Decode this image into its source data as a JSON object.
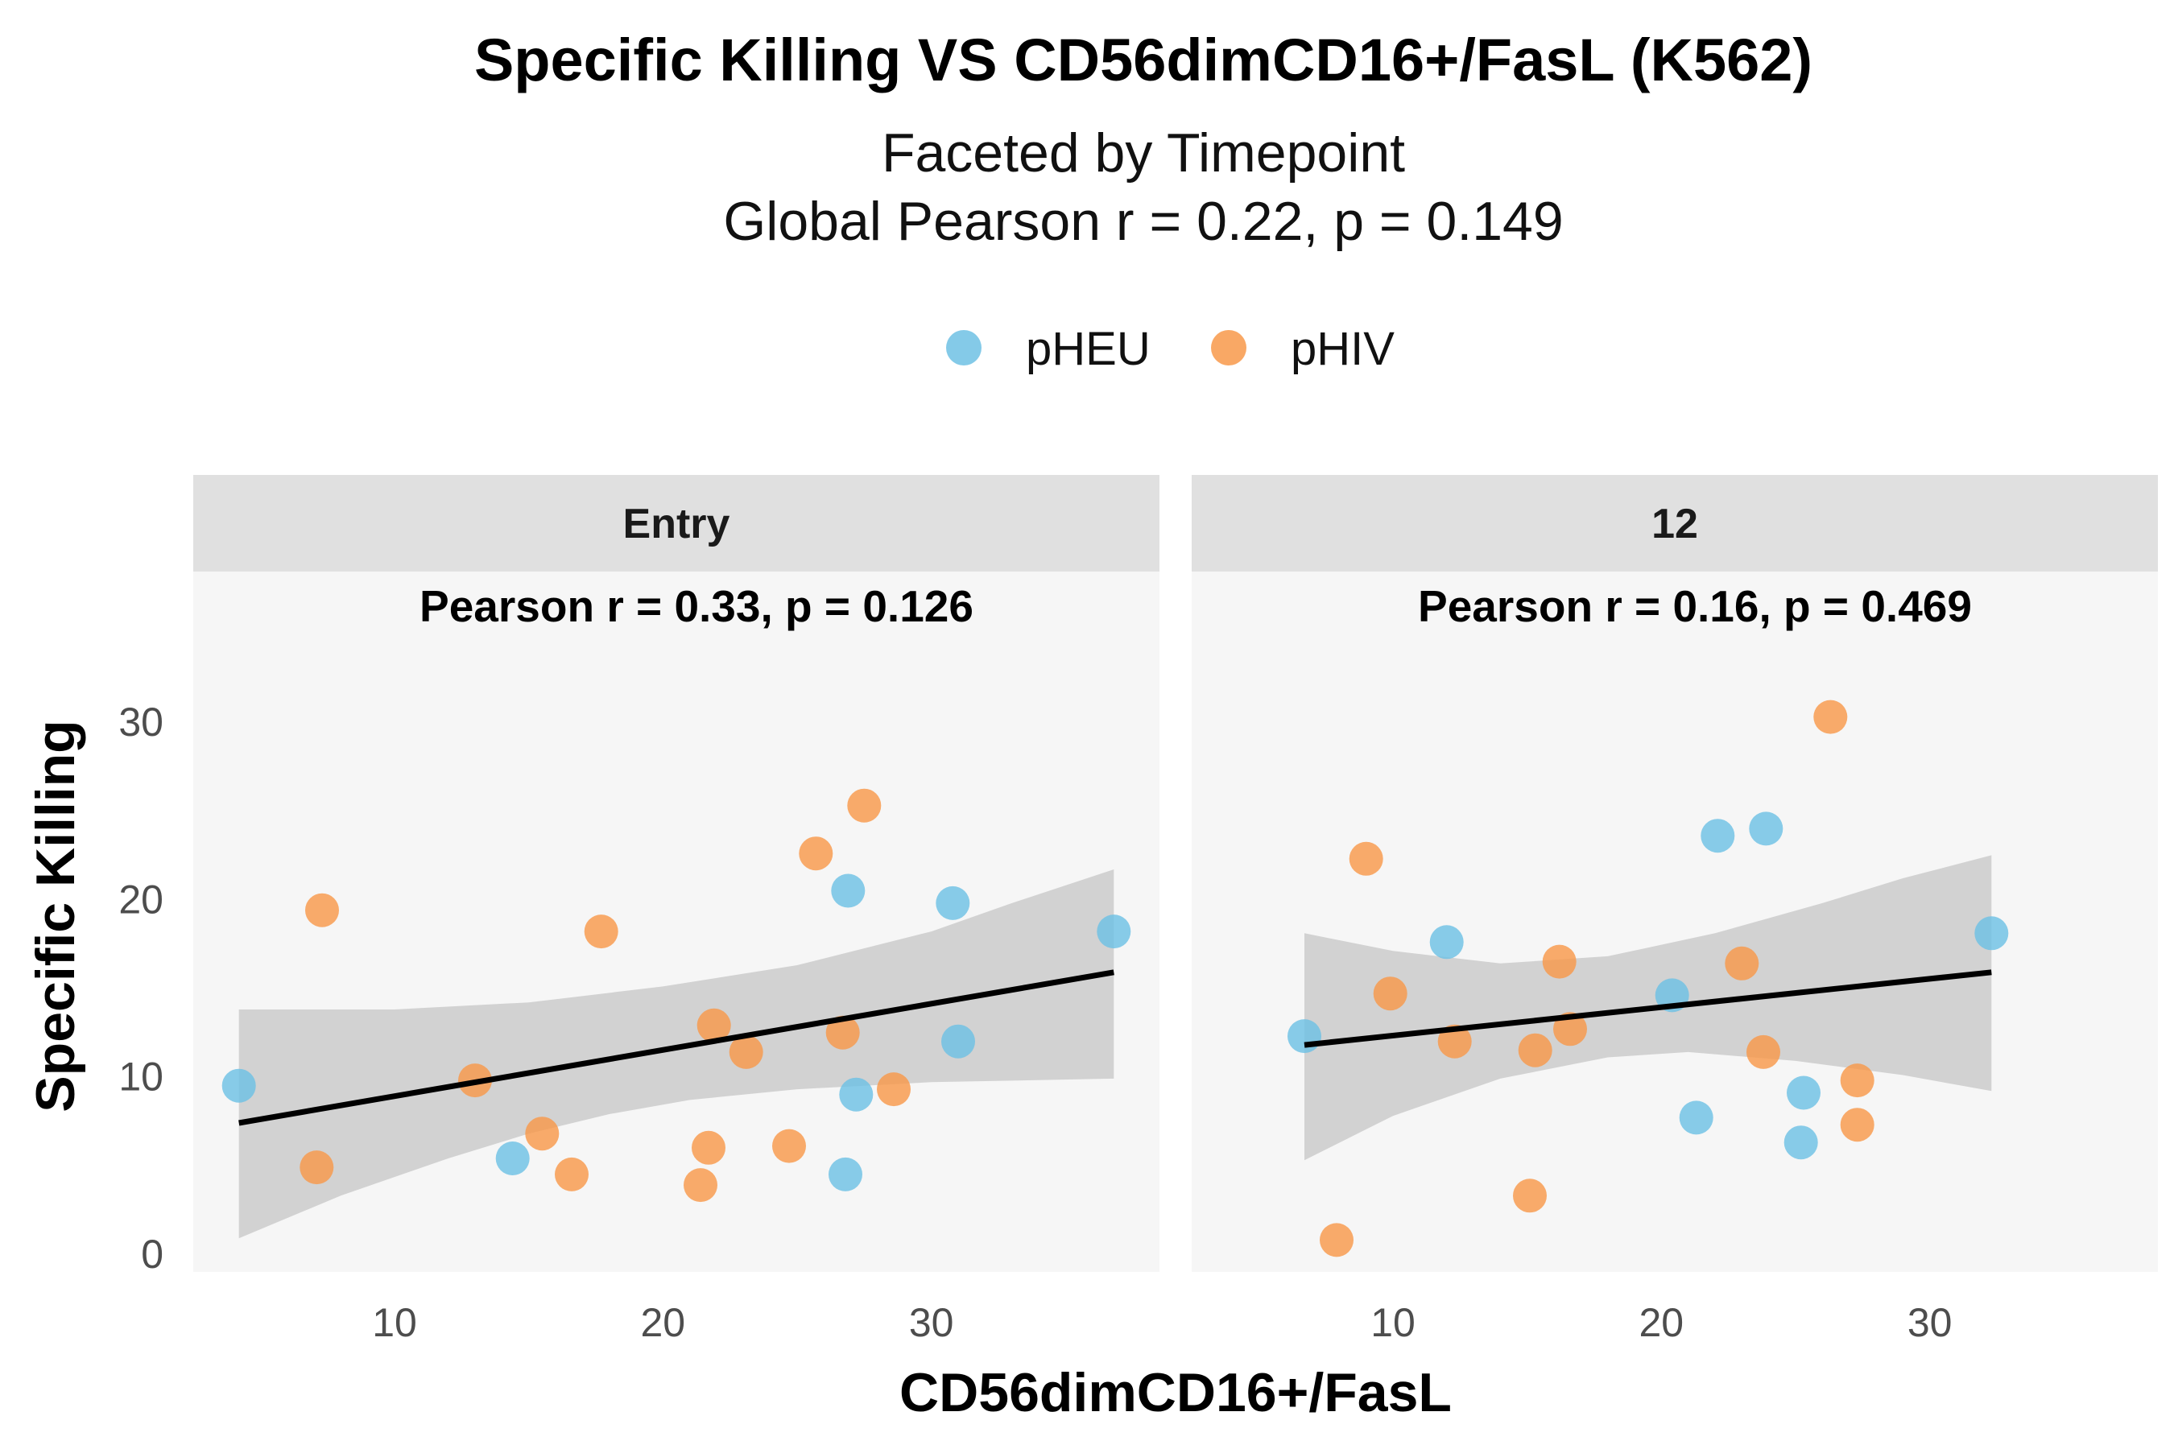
{
  "chart_data": {
    "type": "scatter",
    "title": "Specific Killing VS CD56dimCD16+/FasL (K562)",
    "subtitle_lines": [
      "Faceted by Timepoint",
      "Global Pearson r = 0.22, p = 0.149"
    ],
    "xlabel": "CD56dimCD16+/FasL",
    "ylabel": "Specific Killing",
    "xlim": [
      2.5,
      38.5
    ],
    "ylim": [
      -1,
      38.5
    ],
    "x_ticks": [
      10,
      20,
      30
    ],
    "y_ticks": [
      0,
      10,
      20,
      30
    ],
    "legend_position": "top",
    "legend": [
      {
        "name": "pHEU",
        "color": "#6EC1E4"
      },
      {
        "name": "pHIV",
        "color": "#F8994A"
      }
    ],
    "facets": [
      {
        "label": "Entry",
        "annotation": "Pearson r = 0.33, p = 0.126",
        "fit": {
          "x": [
            4.2,
            36.8
          ],
          "y": [
            7.4,
            15.9
          ]
        },
        "ci_upper": [
          [
            4.2,
            13.8
          ],
          [
            10,
            13.8
          ],
          [
            15,
            14.2
          ],
          [
            20,
            15.1
          ],
          [
            25,
            16.3
          ],
          [
            30,
            18.2
          ],
          [
            33,
            19.8
          ],
          [
            36.8,
            21.7
          ]
        ],
        "ci_lower": [
          [
            4.2,
            0.9
          ],
          [
            8,
            3.3
          ],
          [
            12,
            5.4
          ],
          [
            15,
            6.8
          ],
          [
            18,
            7.9
          ],
          [
            21,
            8.7
          ],
          [
            25,
            9.3
          ],
          [
            30,
            9.7
          ],
          [
            36.8,
            9.9
          ]
        ],
        "points": [
          {
            "group": "pHEU",
            "x": 4.2,
            "y": 9.5
          },
          {
            "group": "pHEU",
            "x": 14.4,
            "y": 5.4
          },
          {
            "group": "pHEU",
            "x": 26.9,
            "y": 20.5
          },
          {
            "group": "pHEU",
            "x": 26.8,
            "y": 4.5
          },
          {
            "group": "pHEU",
            "x": 27.2,
            "y": 9.0
          },
          {
            "group": "pHEU",
            "x": 30.8,
            "y": 19.8
          },
          {
            "group": "pHEU",
            "x": 31.0,
            "y": 12.0
          },
          {
            "group": "pHEU",
            "x": 36.8,
            "y": 18.2
          },
          {
            "group": "pHIV",
            "x": 7.3,
            "y": 19.4
          },
          {
            "group": "pHIV",
            "x": 7.1,
            "y": 4.9
          },
          {
            "group": "pHIV",
            "x": 13.0,
            "y": 9.8
          },
          {
            "group": "pHIV",
            "x": 15.5,
            "y": 6.8
          },
          {
            "group": "pHIV",
            "x": 16.6,
            "y": 4.5
          },
          {
            "group": "pHIV",
            "x": 17.7,
            "y": 18.2
          },
          {
            "group": "pHIV",
            "x": 21.4,
            "y": 3.9
          },
          {
            "group": "pHIV",
            "x": 21.7,
            "y": 6.0
          },
          {
            "group": "pHIV",
            "x": 21.9,
            "y": 12.9
          },
          {
            "group": "pHIV",
            "x": 23.1,
            "y": 11.4
          },
          {
            "group": "pHIV",
            "x": 24.7,
            "y": 6.1
          },
          {
            "group": "pHIV",
            "x": 25.7,
            "y": 22.6
          },
          {
            "group": "pHIV",
            "x": 26.7,
            "y": 12.5
          },
          {
            "group": "pHIV",
            "x": 27.5,
            "y": 25.3
          },
          {
            "group": "pHIV",
            "x": 28.6,
            "y": 9.3
          }
        ]
      },
      {
        "label": "12",
        "annotation": "Pearson r = 0.16, p = 0.469",
        "fit": {
          "x": [
            6.7,
            32.3
          ],
          "y": [
            11.8,
            15.9
          ]
        },
        "ci_upper": [
          [
            6.7,
            18.1
          ],
          [
            10,
            17.1
          ],
          [
            14,
            16.4
          ],
          [
            18,
            16.8
          ],
          [
            22,
            18.1
          ],
          [
            26,
            19.8
          ],
          [
            29,
            21.2
          ],
          [
            32.3,
            22.5
          ]
        ],
        "ci_lower": [
          [
            6.7,
            5.3
          ],
          [
            10,
            7.8
          ],
          [
            14,
            9.9
          ],
          [
            18,
            11.1
          ],
          [
            21,
            11.4
          ],
          [
            25,
            10.9
          ],
          [
            29,
            10.1
          ],
          [
            32.3,
            9.2
          ]
        ],
        "points": [
          {
            "group": "pHEU",
            "x": 6.7,
            "y": 12.3
          },
          {
            "group": "pHEU",
            "x": 12.0,
            "y": 17.6
          },
          {
            "group": "pHEU",
            "x": 20.4,
            "y": 14.6
          },
          {
            "group": "pHEU",
            "x": 21.3,
            "y": 7.7
          },
          {
            "group": "pHEU",
            "x": 22.1,
            "y": 23.6
          },
          {
            "group": "pHEU",
            "x": 23.9,
            "y": 24.0
          },
          {
            "group": "pHEU",
            "x": 25.2,
            "y": 6.3
          },
          {
            "group": "pHEU",
            "x": 25.3,
            "y": 9.1
          },
          {
            "group": "pHEU",
            "x": 32.3,
            "y": 18.1
          },
          {
            "group": "pHIV",
            "x": 7.9,
            "y": 0.8
          },
          {
            "group": "pHIV",
            "x": 9.0,
            "y": 22.3
          },
          {
            "group": "pHIV",
            "x": 9.9,
            "y": 14.7
          },
          {
            "group": "pHIV",
            "x": 12.3,
            "y": 12.0
          },
          {
            "group": "pHIV",
            "x": 15.1,
            "y": 3.3
          },
          {
            "group": "pHIV",
            "x": 15.3,
            "y": 11.5
          },
          {
            "group": "pHIV",
            "x": 16.2,
            "y": 16.5
          },
          {
            "group": "pHIV",
            "x": 16.6,
            "y": 12.7
          },
          {
            "group": "pHIV",
            "x": 23.0,
            "y": 16.4
          },
          {
            "group": "pHIV",
            "x": 23.8,
            "y": 11.4
          },
          {
            "group": "pHIV",
            "x": 26.3,
            "y": 30.3
          },
          {
            "group": "pHIV",
            "x": 27.3,
            "y": 9.8
          },
          {
            "group": "pHIV",
            "x": 27.3,
            "y": 7.3
          }
        ]
      }
    ]
  }
}
